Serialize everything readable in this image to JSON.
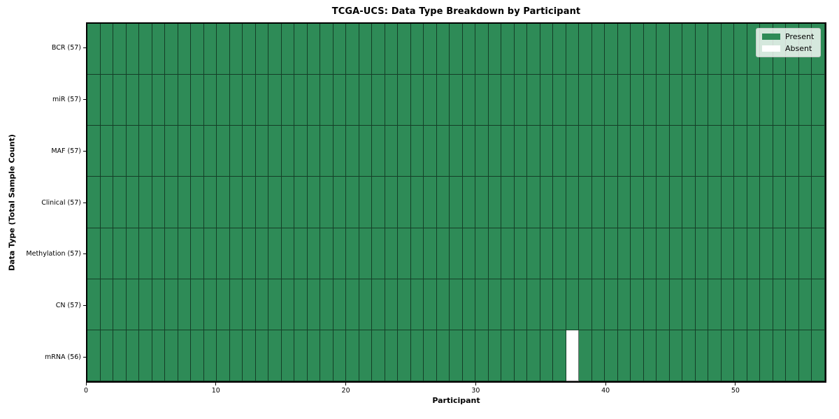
{
  "chart_data": {
    "type": "heatmap",
    "title": "TCGA-UCS: Data Type Breakdown by Participant",
    "xlabel": "Participant",
    "ylabel": "Data Type (Total Sample Count)",
    "n_participants": 57,
    "x_ticks": [
      0,
      10,
      20,
      30,
      40,
      50
    ],
    "rows": [
      {
        "label": "BCR (57)",
        "data_type": "BCR",
        "present_count": 57,
        "absent_participants": []
      },
      {
        "label": "miR (57)",
        "data_type": "miR",
        "present_count": 57,
        "absent_participants": []
      },
      {
        "label": "MAF (57)",
        "data_type": "MAF",
        "present_count": 57,
        "absent_participants": []
      },
      {
        "label": "Clinical (57)",
        "data_type": "Clinical",
        "present_count": 57,
        "absent_participants": []
      },
      {
        "label": "Methylation (57)",
        "data_type": "Methylation",
        "present_count": 57,
        "absent_participants": []
      },
      {
        "label": "CN (57)",
        "data_type": "CN",
        "present_count": 57,
        "absent_participants": []
      },
      {
        "label": "mRNA (56)",
        "data_type": "mRNA",
        "present_count": 56,
        "absent_participants": [
          37
        ]
      }
    ],
    "legend": {
      "position": "upper-right",
      "entries": [
        {
          "label": "Present",
          "color": "#2e8b57"
        },
        {
          "label": "Absent",
          "color": "#ffffff"
        }
      ]
    },
    "colors": {
      "present": "#2e8b57",
      "absent": "#ffffff",
      "cell_edge": "rgba(0,0,0,0.55)",
      "axes_edge": "#000000",
      "background": "#ffffff"
    },
    "grid": true
  }
}
